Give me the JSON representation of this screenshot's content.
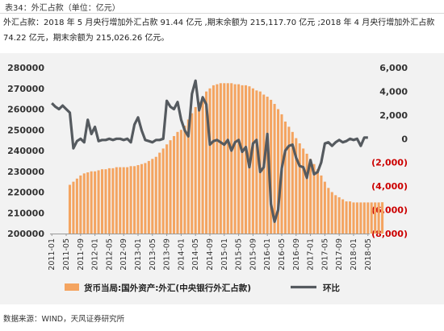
{
  "header": {
    "title": "表34：外汇占款（单位：亿元）",
    "description": "外汇占款：2018 年 5 月央行增加外汇占款 91.44 亿元 ,期末余额为 215,117.70 亿元 ;2018 年 4 月央行增加外汇占款 74.22 亿元，期末余额为 215,026.26 亿元。"
  },
  "footer": {
    "source": "数据来源：WIND，天风证券研究所"
  },
  "colors": {
    "bar": "#f4a460",
    "bar_stroke": "#e08a3c",
    "line": "#555a5f",
    "negative_tick": "#cc0000",
    "panel": "#f2f2f2"
  },
  "chart_data": {
    "type": "bar",
    "x_tick_labels": [
      "2011-01",
      "2011-05",
      "2011-09",
      "2012-01",
      "2012-05",
      "2012-09",
      "2013-01",
      "2013-05",
      "2013-09",
      "2014-01",
      "2014-05",
      "2014-09",
      "2015-01",
      "2015-05",
      "2015-09",
      "2016-01",
      "2016-05",
      "2016-09",
      "2017-01",
      "2017-05",
      "2017-09",
      "2018-01",
      "2018-05"
    ],
    "x_start": "2011-01",
    "bar_start": "2011-06",
    "y_left": {
      "min": 200000,
      "max": 280000,
      "step": 10000,
      "tick_labels": [
        "200000",
        "210000",
        "220000",
        "230000",
        "240000",
        "250000",
        "260000",
        "270000",
        "280000"
      ]
    },
    "y_right": {
      "min": -8000,
      "max": 6000,
      "step": 2000,
      "tick_labels": [
        "(8,000)",
        "(6,000)",
        "(4,000)",
        "(2,000)",
        "0",
        "2,000",
        "4,000",
        "6,000"
      ]
    },
    "series": [
      {
        "name": "货币当局:国外资产:外汇(中央银行外汇占款)",
        "type": "bar",
        "axis": "left",
        "values": [
          223500,
          225000,
          226500,
          228000,
          229000,
          229500,
          230000,
          230000,
          230500,
          231000,
          231000,
          231500,
          231500,
          232000,
          232000,
          232000,
          232000,
          232500,
          232500,
          233000,
          233500,
          234000,
          235000,
          236000,
          237000,
          239000,
          241000,
          243000,
          245000,
          247000,
          249000,
          250000,
          252000,
          255000,
          258000,
          261000,
          263500,
          266000,
          268500,
          270000,
          271500,
          272000,
          272500,
          272500,
          272500,
          272500,
          272000,
          272000,
          271500,
          271500,
          271000,
          270000,
          269000,
          268500,
          267000,
          266000,
          264500,
          262500,
          260000,
          257500,
          254000,
          251500,
          249000,
          246000,
          243500,
          241000,
          238500,
          236000,
          233500,
          231000,
          228000,
          225000,
          222000,
          220000,
          218500,
          217500,
          216500,
          215500,
          215500,
          215000,
          215000,
          215000,
          215000,
          215000,
          215000,
          215000,
          215000,
          215100
        ]
      },
      {
        "name": "环比",
        "type": "line",
        "axis": "right",
        "points": [
          [
            "2011-01",
            3000
          ],
          [
            "2011-02",
            2700
          ],
          [
            "2011-03",
            2500
          ],
          [
            "2011-04",
            2800
          ],
          [
            "2011-05",
            2500
          ],
          [
            "2011-06",
            2200
          ],
          [
            "2011-07",
            -800
          ],
          [
            "2011-08",
            -200
          ],
          [
            "2011-09",
            0
          ],
          [
            "2011-10",
            -300
          ],
          [
            "2011-11",
            1600
          ],
          [
            "2011-12",
            400
          ],
          [
            "2012-01",
            1000
          ],
          [
            "2012-02",
            -200
          ],
          [
            "2012-03",
            -100
          ],
          [
            "2012-04",
            -100
          ],
          [
            "2012-05",
            0
          ],
          [
            "2012-06",
            -100
          ],
          [
            "2012-07",
            0
          ],
          [
            "2012-08",
            0
          ],
          [
            "2012-09",
            -100
          ],
          [
            "2012-10",
            0
          ],
          [
            "2012-11",
            -300
          ],
          [
            "2012-12",
            1200
          ],
          [
            "2013-01",
            1800
          ],
          [
            "2013-02",
            700
          ],
          [
            "2013-03",
            -100
          ],
          [
            "2013-04",
            -200
          ],
          [
            "2013-05",
            -300
          ],
          [
            "2013-06",
            -100
          ],
          [
            "2013-07",
            -100
          ],
          [
            "2013-08",
            0
          ],
          [
            "2013-09",
            3200
          ],
          [
            "2013-10",
            2700
          ],
          [
            "2013-11",
            2500
          ],
          [
            "2013-12",
            3100
          ],
          [
            "2014-01",
            1600
          ],
          [
            "2014-02",
            700
          ],
          [
            "2014-03",
            200
          ],
          [
            "2014-04",
            3800
          ],
          [
            "2014-05",
            4900
          ],
          [
            "2014-06",
            2400
          ],
          [
            "2014-07",
            3500
          ],
          [
            "2014-08",
            2900
          ],
          [
            "2014-09",
            -500
          ],
          [
            "2014-10",
            -200
          ],
          [
            "2014-11",
            -100
          ],
          [
            "2014-12",
            -300
          ],
          [
            "2015-01",
            -500
          ],
          [
            "2015-02",
            -100
          ],
          [
            "2015-03",
            -1000
          ],
          [
            "2015-04",
            -300
          ],
          [
            "2015-05",
            -100
          ],
          [
            "2015-06",
            -1100
          ],
          [
            "2015-07",
            -700
          ],
          [
            "2015-08",
            -2400
          ],
          [
            "2015-09",
            -400
          ],
          [
            "2015-10",
            -100
          ],
          [
            "2015-11",
            -2800
          ],
          [
            "2015-12",
            -2400
          ],
          [
            "2016-01",
            400
          ],
          [
            "2016-02",
            -5500
          ],
          [
            "2016-03",
            -7000
          ],
          [
            "2016-04",
            -6000
          ],
          [
            "2016-05",
            -2500
          ],
          [
            "2016-06",
            -1000
          ],
          [
            "2016-07",
            -600
          ],
          [
            "2016-08",
            -500
          ],
          [
            "2016-09",
            -1600
          ],
          [
            "2016-10",
            -2300
          ],
          [
            "2016-11",
            -2400
          ],
          [
            "2016-12",
            -3300
          ],
          [
            "2017-01",
            -1800
          ],
          [
            "2017-02",
            -3000
          ],
          [
            "2017-03",
            -2800
          ],
          [
            "2017-04",
            -2000
          ],
          [
            "2017-05",
            -400
          ],
          [
            "2017-06",
            -300
          ],
          [
            "2017-07",
            -600
          ],
          [
            "2017-08",
            -300
          ],
          [
            "2017-09",
            -100
          ],
          [
            "2017-10",
            -300
          ],
          [
            "2017-11",
            -200
          ],
          [
            "2017-12",
            0
          ],
          [
            "2018-01",
            -100
          ],
          [
            "2018-02",
            0
          ],
          [
            "2018-03",
            -600
          ],
          [
            "2018-04",
            100
          ],
          [
            "2018-05",
            100
          ]
        ]
      }
    ],
    "legend": [
      {
        "label": "货币当局:国外资产:外汇(中央银行外汇占款)"
      },
      {
        "label": "环比"
      }
    ],
    "legend_position": "bottom",
    "grid": false
  }
}
